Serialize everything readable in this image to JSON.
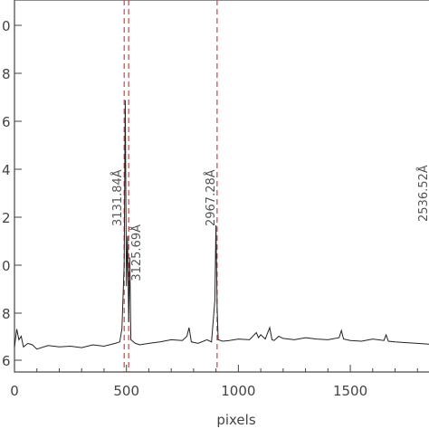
{
  "chart_data": {
    "type": "line",
    "xlabel": "pixels",
    "ylabel": "",
    "xlim": [
      0,
      1900
    ],
    "ylim": [
      5,
      10.2
    ],
    "x_ticks": [
      0,
      500,
      1000,
      1500
    ],
    "x_tick_labels": [
      "0",
      "500",
      "1000",
      "1500"
    ],
    "y_ticks": [
      5,
      6,
      7,
      8,
      9,
      10
    ],
    "y_tick_labels": [
      "6",
      "8",
      "0",
      "2",
      "4",
      "6",
      "8",
      "0"
    ],
    "y_tick_values": [
      5.5,
      6.25,
      7.0,
      7.75,
      8.5,
      9.25,
      10.0,
      10.75
    ],
    "grid": false,
    "series": [
      {
        "line_color": "#222222",
        "x": [
          0,
          10,
          20,
          30,
          40,
          60,
          80,
          100,
          150,
          200,
          250,
          300,
          350,
          400,
          450,
          470,
          480,
          490,
          495,
          500,
          505,
          510,
          515,
          520,
          540,
          560,
          600,
          650,
          700,
          750,
          770,
          780,
          790,
          820,
          860,
          880,
          895,
          900,
          905,
          910,
          930,
          960,
          1000,
          1050,
          1080,
          1090,
          1100,
          1120,
          1140,
          1150,
          1160,
          1180,
          1200,
          1250,
          1300,
          1350,
          1400,
          1450,
          1460,
          1470,
          1500,
          1550,
          1600,
          1650,
          1660,
          1670,
          1700,
          1750,
          1800,
          1850,
          1900
        ],
        "y": [
          5.35,
          5.6,
          5.45,
          5.5,
          5.35,
          5.4,
          5.38,
          5.32,
          5.37,
          5.35,
          5.36,
          5.34,
          5.38,
          5.36,
          5.4,
          5.42,
          5.6,
          6.5,
          8.8,
          6.2,
          6.9,
          5.7,
          6.6,
          5.45,
          5.4,
          5.38,
          5.4,
          5.42,
          5.45,
          5.44,
          5.5,
          5.62,
          5.42,
          5.4,
          5.45,
          5.42,
          6.0,
          7.05,
          5.9,
          5.45,
          5.43,
          5.44,
          5.46,
          5.45,
          5.55,
          5.48,
          5.52,
          5.46,
          5.62,
          5.45,
          5.44,
          5.5,
          5.47,
          5.45,
          5.48,
          5.46,
          5.45,
          5.48,
          5.58,
          5.46,
          5.44,
          5.43,
          5.46,
          5.44,
          5.52,
          5.43,
          5.42,
          5.41,
          5.4,
          5.39,
          5.38
        ]
      }
    ],
    "reference_lines": [
      {
        "x": 490,
        "color": "#cc4444",
        "label": "3131.84Å"
      },
      {
        "x": 510,
        "color": "#cc4444",
        "label": "3125.69Å"
      },
      {
        "x": 905,
        "color": "#cc4444",
        "label": "2967.28Å"
      }
    ],
    "edge_label": "2536.52Å"
  }
}
